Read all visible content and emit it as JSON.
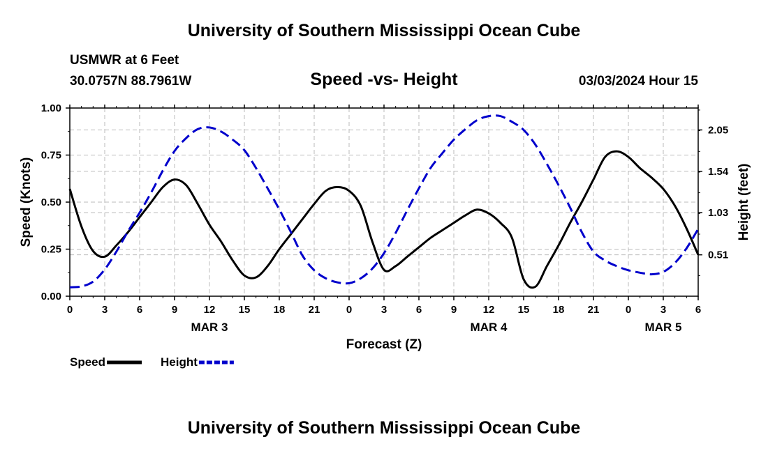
{
  "page": {
    "title_top": "University of Southern Mississippi Ocean Cube",
    "title_bottom": "University of Southern Mississippi Ocean Cube",
    "station": "USMWR at 6 Feet",
    "coords": "30.0757N  88.7961W",
    "chart_title": "Speed -vs- Height",
    "timestamp": "03/03/2024 Hour 15"
  },
  "chart_data": {
    "type": "line",
    "title": "Speed -vs- Height",
    "xlabel": "Forecast (Z)",
    "ylabel": "Speed (Knots)",
    "ylabel_right": "Height (feet)",
    "x_range": [
      0,
      54
    ],
    "ylim": [
      0,
      1.0
    ],
    "ylim_right": [
      0.0,
      2.32
    ],
    "y_ticks": [
      "0.00",
      "0.25",
      "0.50",
      "0.75",
      "1.00"
    ],
    "y_tick_values": [
      0,
      0.25,
      0.5,
      0.75,
      1.0
    ],
    "y_right_ticks": [
      "0.51",
      "1.03",
      "1.54",
      "2.05"
    ],
    "y_right_tick_values": [
      0.51,
      1.03,
      1.54,
      2.05
    ],
    "x_ticks": [
      "0",
      "3",
      "6",
      "9",
      "12",
      "15",
      "18",
      "21",
      "0",
      "3",
      "6",
      "9",
      "12",
      "15",
      "18",
      "21",
      "0",
      "3",
      "6"
    ],
    "x_tick_values": [
      0,
      3,
      6,
      9,
      12,
      15,
      18,
      21,
      24,
      27,
      30,
      33,
      36,
      39,
      42,
      45,
      48,
      51,
      54
    ],
    "date_labels": [
      {
        "label": "MAR 3",
        "x": 12
      },
      {
        "label": "MAR 4",
        "x": 36
      },
      {
        "label": "MAR 5",
        "x": 51
      }
    ],
    "grid": true,
    "legend_position": "bottom-left",
    "series": [
      {
        "name": "Speed",
        "axis": "left",
        "color": "#000000",
        "style": "solid",
        "x": [
          0,
          1,
          2,
          3,
          4,
          5,
          6,
          7,
          8,
          9,
          10,
          11,
          12,
          13,
          14,
          15,
          16,
          17,
          18,
          19,
          20,
          21,
          22,
          23,
          24,
          25,
          26,
          27,
          28,
          29,
          30,
          31,
          32,
          33,
          34,
          35,
          36,
          37,
          38,
          39,
          40,
          41,
          42,
          43,
          44,
          45,
          46,
          47,
          48,
          49,
          50,
          51,
          52,
          53,
          54
        ],
        "values": [
          0.57,
          0.37,
          0.24,
          0.21,
          0.27,
          0.34,
          0.42,
          0.5,
          0.58,
          0.62,
          0.59,
          0.49,
          0.38,
          0.29,
          0.19,
          0.11,
          0.1,
          0.16,
          0.25,
          0.33,
          0.41,
          0.49,
          0.56,
          0.58,
          0.56,
          0.48,
          0.29,
          0.14,
          0.16,
          0.21,
          0.26,
          0.31,
          0.35,
          0.39,
          0.43,
          0.46,
          0.44,
          0.39,
          0.31,
          0.09,
          0.05,
          0.16,
          0.27,
          0.39,
          0.5,
          0.62,
          0.74,
          0.77,
          0.74,
          0.68,
          0.63,
          0.57,
          0.48,
          0.36,
          0.22
        ]
      },
      {
        "name": "Height",
        "axis": "right",
        "color": "#0000cc",
        "style": "dashed",
        "x": [
          0,
          1,
          2,
          3,
          4,
          5,
          6,
          7,
          8,
          9,
          10,
          11,
          12,
          13,
          14,
          15,
          16,
          17,
          18,
          19,
          20,
          21,
          22,
          23,
          24,
          25,
          26,
          27,
          28,
          29,
          30,
          31,
          32,
          33,
          34,
          35,
          36,
          37,
          38,
          39,
          40,
          41,
          42,
          43,
          44,
          45,
          46,
          47,
          48,
          49,
          50,
          51,
          52,
          53,
          54
        ],
        "values": [
          0.11,
          0.12,
          0.18,
          0.33,
          0.55,
          0.8,
          1.03,
          1.28,
          1.55,
          1.79,
          1.95,
          2.06,
          2.08,
          2.03,
          1.93,
          1.8,
          1.58,
          1.33,
          1.07,
          0.79,
          0.5,
          0.32,
          0.22,
          0.17,
          0.16,
          0.22,
          0.34,
          0.53,
          0.78,
          1.06,
          1.33,
          1.58,
          1.76,
          1.93,
          2.06,
          2.17,
          2.22,
          2.22,
          2.15,
          2.05,
          1.87,
          1.63,
          1.37,
          1.09,
          0.79,
          0.55,
          0.44,
          0.37,
          0.32,
          0.29,
          0.27,
          0.3,
          0.41,
          0.59,
          0.83
        ]
      }
    ]
  }
}
